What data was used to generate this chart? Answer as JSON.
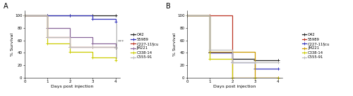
{
  "panel_A": {
    "title": "A",
    "xlabel": "Days post injection",
    "ylabel": "% Survival",
    "xlim": [
      0,
      4.2
    ],
    "ylim": [
      0,
      108
    ],
    "yticks": [
      0,
      20,
      40,
      60,
      80,
      100
    ],
    "xticks": [
      0,
      1,
      2,
      3,
      4
    ],
    "annotation": "***",
    "strains": [
      {
        "name": "O42",
        "color": "#222222",
        "x": [
          0,
          1,
          2,
          3,
          4
        ],
        "y": [
          100,
          100,
          100,
          100,
          100
        ]
      },
      {
        "name": "55989",
        "color": "#3333bb",
        "x": [
          0,
          1,
          2,
          3,
          4
        ],
        "y": [
          100,
          100,
          100,
          95,
          90
        ]
      },
      {
        "name": "C227-11§cu",
        "color": "#bb3322",
        "x": [
          0,
          1,
          2,
          3,
          4
        ],
        "y": [
          100,
          65,
          50,
          50,
          48
        ]
      },
      {
        "name": "JM221",
        "color": "#886699",
        "x": [
          0,
          1,
          2,
          3,
          4
        ],
        "y": [
          100,
          80,
          65,
          55,
          48
        ]
      },
      {
        "name": "C338-14",
        "color": "#cccc00",
        "x": [
          0,
          1,
          2,
          3,
          4
        ],
        "y": [
          100,
          55,
          42,
          33,
          28
        ]
      },
      {
        "name": "C555-91",
        "color": "#bbbbbb",
        "x": [
          0,
          1,
          2,
          3,
          4
        ],
        "y": [
          100,
          65,
          50,
          50,
          48
        ]
      }
    ],
    "ann_ymin": 28,
    "ann_ymax": 90,
    "ann_x": 4.05
  },
  "panel_B": {
    "title": "B",
    "xlabel": "Days post injection",
    "ylabel": "% Survival",
    "xlim": [
      0,
      4.2
    ],
    "ylim": [
      0,
      108
    ],
    "yticks": [
      0,
      20,
      40,
      60,
      80,
      100
    ],
    "xticks": [
      0,
      1,
      2,
      3,
      4
    ],
    "strains": [
      {
        "name": "O42",
        "color": "#222222",
        "x": [
          0,
          1,
          2,
          3,
          4
        ],
        "y": [
          100,
          40,
          30,
          28,
          28
        ]
      },
      {
        "name": "55989",
        "color": "#bb3322",
        "x": [
          0,
          1,
          2,
          3,
          4
        ],
        "y": [
          100,
          100,
          0,
          0,
          0
        ]
      },
      {
        "name": "C227-11§cu",
        "color": "#3333bb",
        "x": [
          0,
          1,
          2,
          3,
          4
        ],
        "y": [
          100,
          40,
          25,
          15,
          15
        ]
      },
      {
        "name": "JM221",
        "color": "#cc9900",
        "x": [
          0,
          1,
          2,
          3,
          4
        ],
        "y": [
          100,
          42,
          42,
          0,
          0
        ]
      },
      {
        "name": "C338-14",
        "color": "#cccc00",
        "x": [
          0,
          1,
          2,
          3,
          4
        ],
        "y": [
          100,
          30,
          0,
          0,
          0
        ]
      },
      {
        "name": "C555-91",
        "color": "#bbbbbb",
        "x": [
          0,
          1,
          2,
          3,
          4
        ],
        "y": [
          100,
          45,
          25,
          25,
          25
        ]
      }
    ]
  },
  "background_color": "#ffffff",
  "fontsize_label": 4.5,
  "fontsize_tick": 4,
  "fontsize_title": 7,
  "fontsize_legend": 3.8,
  "linewidth": 0.9,
  "marker": "+",
  "markersize": 3.0
}
